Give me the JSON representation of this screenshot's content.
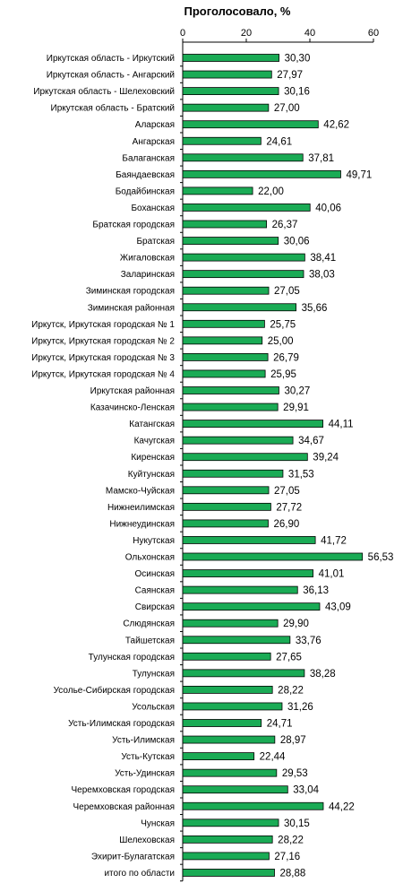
{
  "chart_data": {
    "type": "bar",
    "orientation": "horizontal",
    "title": "Проголосовало, %",
    "xlim": [
      0,
      60
    ],
    "ticks": [
      0,
      20,
      40,
      60
    ],
    "axis_position": "top",
    "grid": false,
    "legend": "none",
    "bar_color": "#1aab55",
    "categories": [
      "Иркутская область - Иркутский",
      "Иркутская область - Ангарский",
      "Иркутская область - Шелеховский",
      "Иркутская область - Братский",
      "Аларская",
      "Ангарская",
      "Балаганская",
      "Баяндаевская",
      "Бодайбинская",
      "Боханская",
      "Братская городская",
      "Братская",
      "Жигаловская",
      "Заларинская",
      "Зиминская городская",
      "Зиминская районная",
      "Иркутск, Иркутская городская № 1",
      "Иркутск, Иркутская городская № 2",
      "Иркутск, Иркутская городская № 3",
      "Иркутск, Иркутская городская № 4",
      "Иркутская районная",
      "Казачинско-Ленская",
      "Катангская",
      "Качугская",
      "Киренская",
      "Куйтунская",
      "Мамско-Чуйская",
      "Нижнеилимская",
      "Нижнеудинская",
      "Нукутская",
      "Ольхонская",
      "Осинская",
      "Саянская",
      "Свирская",
      "Слюдянская",
      "Тайшетская",
      "Тулунская городская",
      "Тулунская",
      "Усолье-Сибирская городская",
      "Усольская",
      "Усть-Илимская городская",
      "Усть-Илимская",
      "Усть-Кутская",
      "Усть-Удинская",
      "Черемховская городская",
      "Черемховская районная",
      "Чунская",
      "Шелеховская",
      "Эхирит-Булагатская",
      "итого по области"
    ],
    "values": [
      30.3,
      27.97,
      30.16,
      27.0,
      42.62,
      24.61,
      37.81,
      49.71,
      22.0,
      40.06,
      26.37,
      30.06,
      38.41,
      38.03,
      27.05,
      35.66,
      25.75,
      25.0,
      26.79,
      25.95,
      30.27,
      29.91,
      44.11,
      34.67,
      39.24,
      31.53,
      27.05,
      27.72,
      26.9,
      41.72,
      56.53,
      41.01,
      36.13,
      43.09,
      29.9,
      33.76,
      27.65,
      38.28,
      28.22,
      31.26,
      24.71,
      28.97,
      22.44,
      29.53,
      33.04,
      44.22,
      30.15,
      28.22,
      27.16,
      28.88
    ],
    "value_labels": [
      "30,30",
      "27,97",
      "30,16",
      "27,00",
      "42,62",
      "24,61",
      "37,81",
      "49,71",
      "22,00",
      "40,06",
      "26,37",
      "30,06",
      "38,41",
      "38,03",
      "27,05",
      "35,66",
      "25,75",
      "25,00",
      "26,79",
      "25,95",
      "30,27",
      "29,91",
      "44,11",
      "34,67",
      "39,24",
      "31,53",
      "27,05",
      "27,72",
      "26,90",
      "41,72",
      "56,53",
      "41,01",
      "36,13",
      "43,09",
      "29,90",
      "33,76",
      "27,65",
      "38,28",
      "28,22",
      "31,26",
      "24,71",
      "28,97",
      "22,44",
      "29,53",
      "33,04",
      "44,22",
      "30,15",
      "28,22",
      "27,16",
      "28,88"
    ]
  }
}
